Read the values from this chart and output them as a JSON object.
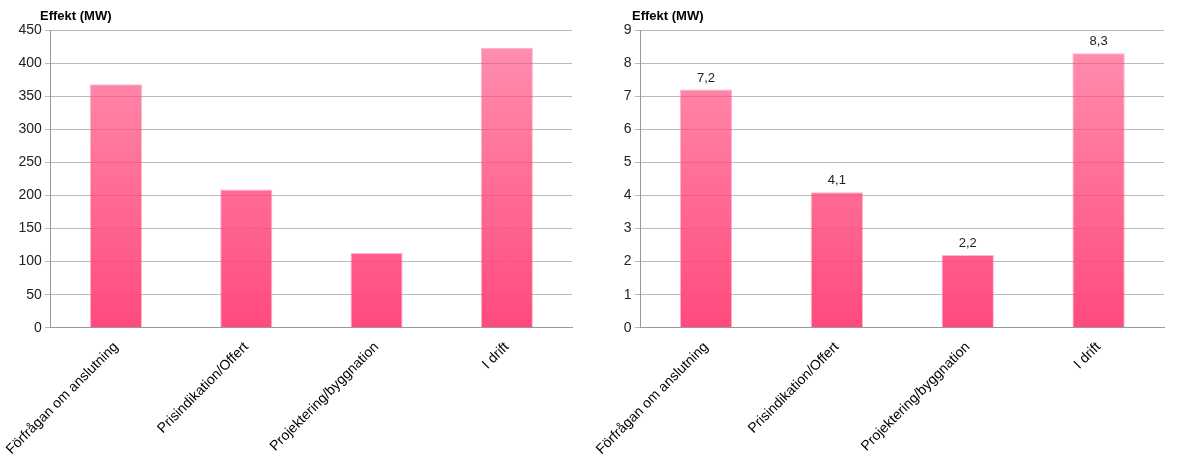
{
  "chart_data": [
    {
      "type": "bar",
      "ylabel": "Effekt (MW)",
      "categories": [
        "Förfrågan om anslutning",
        "Prisindikation/Offert",
        "Projektering/byggnation",
        "I drift"
      ],
      "values": [
        368,
        209,
        113,
        423
      ],
      "color": "#ff4a7d",
      "ylim": [
        0,
        450
      ],
      "yticks": [
        0,
        50,
        100,
        150,
        200,
        250,
        300,
        350,
        400,
        450
      ],
      "grid": "y"
    },
    {
      "type": "bar",
      "ylabel": "Effekt (MW)",
      "categories": [
        "Förfrågan om anslutning",
        "Prisindikation/Offert",
        "Projektering/byggnation",
        "I drift"
      ],
      "values": [
        7.2,
        4.1,
        2.2,
        8.3
      ],
      "value_labels": [
        "7,2",
        "4,1",
        "2,2",
        "8,3"
      ],
      "color": "#ff4a7d",
      "ylim": [
        0,
        9
      ],
      "yticks": [
        0,
        1,
        2,
        3,
        4,
        5,
        6,
        7,
        8,
        9
      ],
      "grid": "y"
    }
  ]
}
